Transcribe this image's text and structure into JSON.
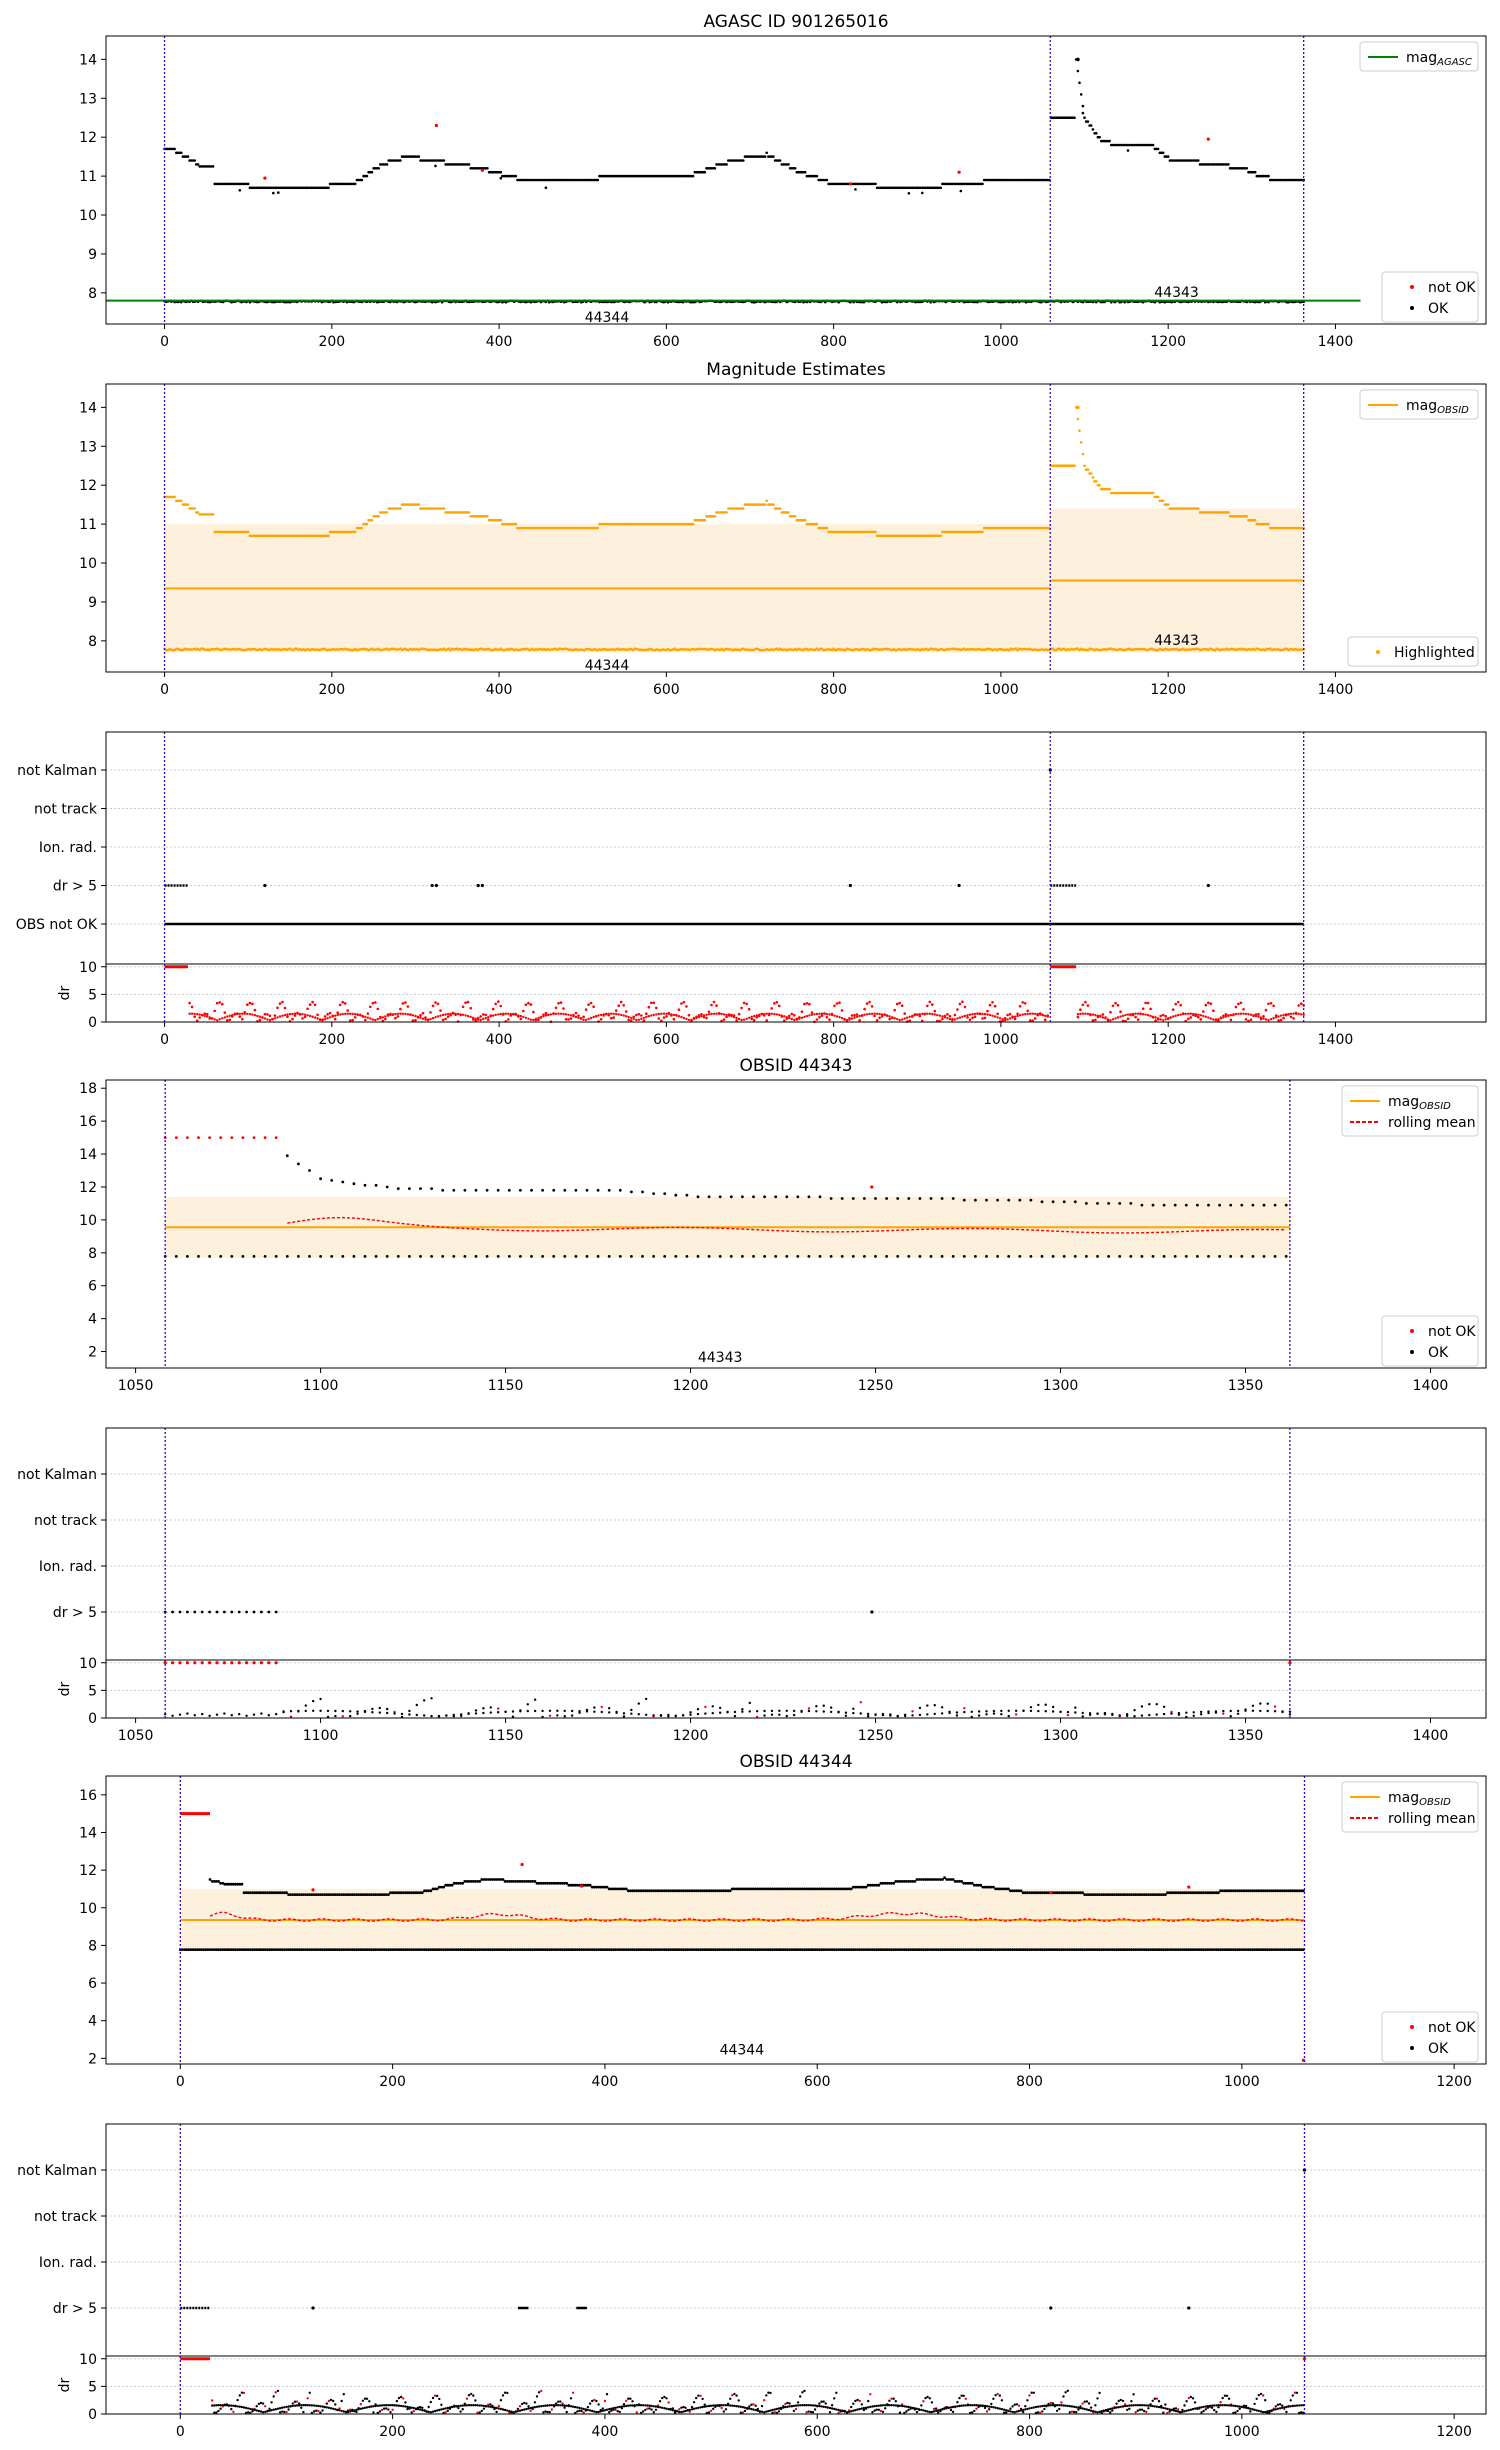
{
  "colors": {
    "ok": "#000000",
    "not_ok": "#ff0000",
    "agasc": "#008000",
    "obsid": "#ffa500",
    "band": "#fdf0dc",
    "vline": "#3a00d8",
    "grid": "#cccccc"
  },
  "chart_data": [
    {
      "type": "scatter",
      "title": "AGASC ID 901265016",
      "xlim": [
        -70,
        1580
      ],
      "ylim": [
        7.2,
        14.6
      ],
      "xticks": [
        0,
        200,
        400,
        600,
        800,
        1000,
        1200,
        1400
      ],
      "yticks": [
        8,
        9,
        10,
        11,
        12,
        13,
        14
      ],
      "legend_top": [
        "magAGASC"
      ],
      "legend_bottom": [
        "not OK",
        "OK"
      ],
      "obsid_labels": [
        "44344",
        "44343"
      ],
      "vlines": [
        0,
        1059,
        1362
      ],
      "agasc_mag": 7.8
    },
    {
      "type": "scatter",
      "title": "Magnitude Estimates",
      "xlim": [
        -70,
        1580
      ],
      "ylim": [
        7.2,
        14.6
      ],
      "xticks": [
        0,
        200,
        400,
        600,
        800,
        1000,
        1200,
        1400
      ],
      "yticks": [
        8,
        9,
        10,
        11,
        12,
        13,
        14
      ],
      "legend_top": [
        "magOBSID"
      ],
      "legend_bottom": [
        "Highlighted"
      ],
      "obsid_labels": [
        "44344",
        "44343"
      ],
      "vlines": [
        0,
        1059,
        1362
      ],
      "obsid_means": [
        9.35,
        9.55
      ]
    },
    {
      "type": "scatter",
      "title": "",
      "xlim": [
        -70,
        1580
      ],
      "categories": [
        "not Kalman",
        "not track",
        "Ion. rad.",
        "dr > 5",
        "OBS not OK"
      ],
      "dr_yticks": [
        0,
        5,
        10
      ],
      "dr_label": "dr",
      "xticks": [
        0,
        200,
        400,
        600,
        800,
        1000,
        1200,
        1400
      ],
      "vlines": [
        0,
        1059,
        1362
      ]
    },
    {
      "type": "scatter",
      "title": "OBSID 44343",
      "xlim": [
        1042,
        1415
      ],
      "ylim": [
        1,
        18.5
      ],
      "xticks": [
        1050,
        1100,
        1150,
        1200,
        1250,
        1300,
        1350,
        1400
      ],
      "yticks": [
        2,
        4,
        6,
        8,
        10,
        12,
        14,
        16,
        18
      ],
      "legend_top": [
        "magOBSID",
        "rolling mean"
      ],
      "legend_bottom": [
        "not OK",
        "OK"
      ],
      "obsid_label": "44343",
      "vlines": [
        1058,
        1362
      ],
      "mean": 9.55
    },
    {
      "type": "scatter",
      "title": "",
      "xlim": [
        1042,
        1415
      ],
      "categories": [
        "not Kalman",
        "not track",
        "Ion. rad.",
        "dr > 5"
      ],
      "dr_yticks": [
        0,
        5,
        10
      ],
      "dr_label": "dr",
      "xticks": [
        1050,
        1100,
        1150,
        1200,
        1250,
        1300,
        1350,
        1400
      ],
      "vlines": [
        1058,
        1362
      ]
    },
    {
      "type": "scatter",
      "title": "OBSID 44344",
      "xlim": [
        -70,
        1230
      ],
      "ylim": [
        1.7,
        17
      ],
      "xticks": [
        0,
        200,
        400,
        600,
        800,
        1000,
        1200
      ],
      "yticks": [
        2,
        4,
        6,
        8,
        10,
        12,
        14,
        16
      ],
      "legend_top": [
        "magOBSID",
        "rolling mean"
      ],
      "legend_bottom": [
        "not OK",
        "OK"
      ],
      "obsid_label": "44344",
      "vlines": [
        0,
        1059
      ],
      "mean": 9.35
    },
    {
      "type": "scatter",
      "title": "",
      "xlim": [
        -70,
        1230
      ],
      "categories": [
        "not Kalman",
        "not track",
        "Ion. rad.",
        "dr > 5"
      ],
      "dr_yticks": [
        0,
        5,
        10
      ],
      "dr_label": "dr",
      "xticks": [
        0,
        200,
        400,
        600,
        800,
        1000,
        1200
      ],
      "vlines": [
        0,
        1059
      ]
    }
  ]
}
